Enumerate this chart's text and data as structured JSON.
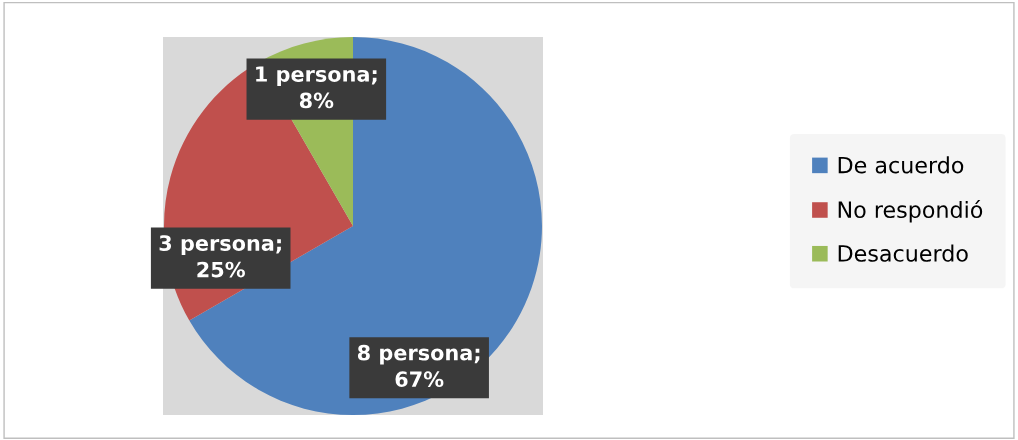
{
  "chart_data": {
    "type": "pie",
    "categories": [
      "De acuerdo",
      "No respondió",
      "Desacuerdo"
    ],
    "values": [
      8,
      3,
      1
    ],
    "colors": [
      "#4f81bd",
      "#c0504d",
      "#9bbb59"
    ],
    "value_labels": [
      "8 persona;\n67%",
      "3 persona;\n25%",
      "1 persona;\n8%"
    ],
    "legend": "right"
  }
}
